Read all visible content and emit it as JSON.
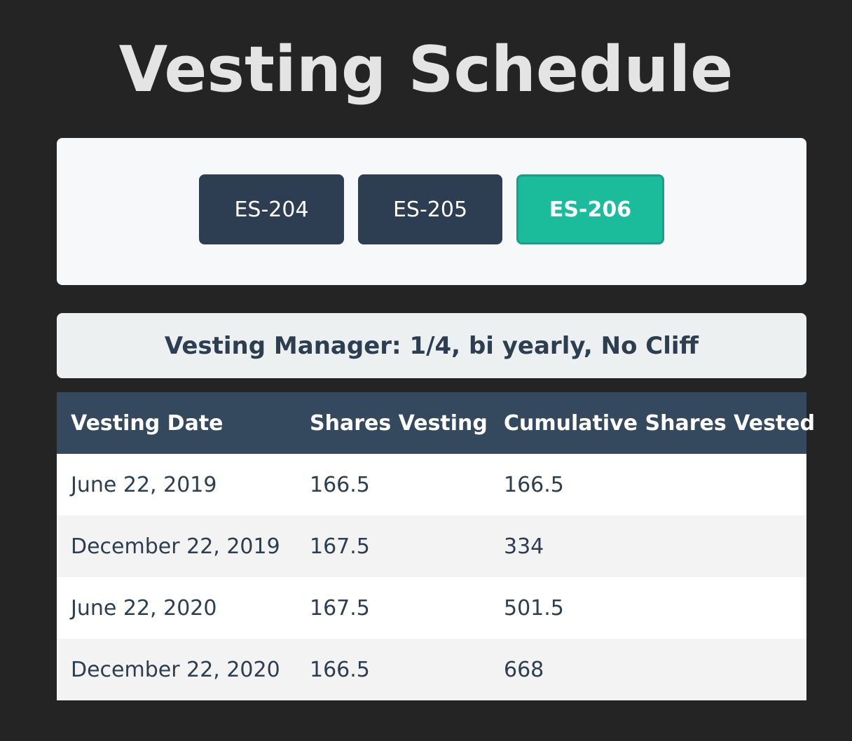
{
  "page": {
    "title": "Vesting Schedule"
  },
  "selector": {
    "buttons": [
      {
        "label": "ES-204",
        "active": false
      },
      {
        "label": "ES-205",
        "active": false
      },
      {
        "label": "ES-206",
        "active": true
      }
    ]
  },
  "manager": {
    "text": "Vesting Manager: 1/4, bi yearly, No Cliff"
  },
  "table": {
    "headers": [
      "Vesting Date",
      "Shares Vesting",
      "Cumulative Shares Vested"
    ],
    "rows": [
      [
        "June 22, 2019",
        "166.5",
        "166.5"
      ],
      [
        "December 22, 2019",
        "167.5",
        "334"
      ],
      [
        "June 22, 2020",
        "167.5",
        "501.5"
      ],
      [
        "December 22, 2020",
        "166.5",
        "668"
      ]
    ]
  },
  "colors": {
    "background": "#242424",
    "button": "#2d3e52",
    "button_active": "#1abc9c",
    "table_header": "#34495e",
    "text_dark": "#2c3e50"
  }
}
